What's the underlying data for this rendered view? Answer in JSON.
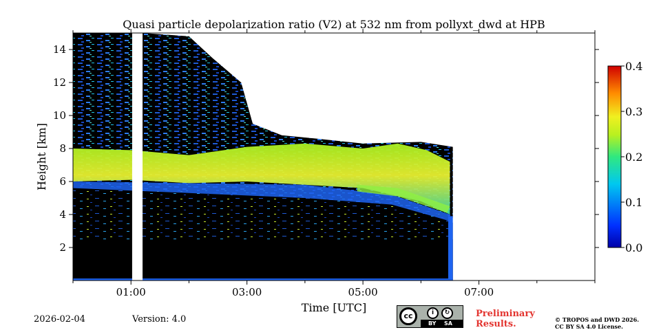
{
  "chart_data": {
    "type": "heatmap",
    "title": "Quasi particle depolarization ratio (V2) at 532 nm from pollyxt_dwd at HPB",
    "xlabel": "Time [UTC]",
    "ylabel": "Height [km]",
    "x_range_hours": [
      0.0,
      9.0
    ],
    "ylim": [
      0.0,
      15.0
    ],
    "x_ticks": [
      {
        "value": 1.0,
        "label": "01:00"
      },
      {
        "value": 3.0,
        "label": "03:00"
      },
      {
        "value": 5.0,
        "label": "05:00"
      },
      {
        "value": 7.0,
        "label": "07:00"
      }
    ],
    "x_minor_ticks": [
      0,
      2,
      4,
      6,
      8,
      9
    ],
    "y_ticks": [
      {
        "value": 2,
        "label": "2"
      },
      {
        "value": 4,
        "label": "4"
      },
      {
        "value": 6,
        "label": "6"
      },
      {
        "value": 8,
        "label": "8"
      },
      {
        "value": 10,
        "label": "10"
      },
      {
        "value": 12,
        "label": "12"
      },
      {
        "value": 14,
        "label": "14"
      }
    ],
    "colorbar": {
      "min": 0.0,
      "max": 0.4,
      "ticks": [
        {
          "value": 0.0,
          "label": "0.0"
        },
        {
          "value": 0.1,
          "label": "0.1"
        },
        {
          "value": 0.2,
          "label": "0.2"
        },
        {
          "value": 0.3,
          "label": "0.3"
        },
        {
          "value": 0.4,
          "label": "0.4"
        }
      ],
      "colormap": "jet-like (blue to red)"
    },
    "data_gap_hours": [
      1.02,
      1.2
    ],
    "measurement_end_hours": 6.55,
    "features": {
      "aerosol_layer": {
        "from_hours": 0.0,
        "to_hours": 6.5,
        "base_km_start": 6.0,
        "top_km_start": 8.0,
        "base_km_end": 4.0,
        "top_km_end": 7.2,
        "depol_ratio_typical": 0.2
      },
      "noise_limit_km": {
        "start": 15.0,
        "after_03": 9.0,
        "after_05": 8.0
      },
      "low_signal_below_km": 2.5
    }
  },
  "footer": {
    "date": "2026-02-04",
    "version": "Version: 4.0",
    "preliminary_line1": "Preliminary",
    "preliminary_line2": "Results.",
    "copyright_line1": "© TROPOS and DWD 2026.",
    "copyright_line2": "CC BY SA 4.0 License.",
    "license_badge": {
      "cc": "cc",
      "by": "BY",
      "sa": "SA"
    }
  }
}
